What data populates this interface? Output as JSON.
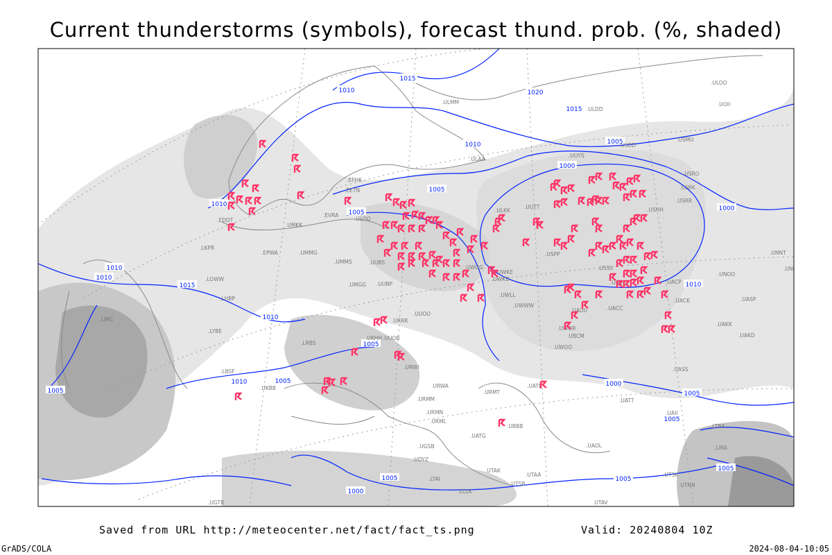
{
  "title": "Current thunderstorms (symbols), forecast thund. prob. (%, shaded)",
  "footer": {
    "source": "Saved from URL http://meteocenter.net/fact/fact_ts.png",
    "valid": "Valid: 20240804 10Z",
    "software": "GrADS/COLA",
    "timestamp": "2024-08-04-10:05"
  },
  "colors": {
    "isobar": "#0022ff",
    "storm_symbol": "#ff3366",
    "shading_light": "#e6e6e6",
    "shading_mid": "#cccccc",
    "shading_dark": "#a8a8a8",
    "coast": "#888888"
  },
  "map": {
    "symbol_icon": "thunderstorm-symbol-icon",
    "isobar_labels": [
      "1015",
      "1010",
      "1020",
      "1015",
      "1010",
      "1005",
      "1000",
      "1005",
      "1010",
      "1005",
      "1000",
      "1010",
      "1010",
      "1015",
      "1010",
      "1005",
      "1010",
      "1005",
      "1005",
      "1000",
      "1005",
      "1005",
      "1005",
      "1005",
      "1000",
      "1010",
      "1005"
    ],
    "stations": [
      "ULOO",
      "ULMM",
      "ULDD",
      "UUYS",
      "USDD",
      "USMU",
      "UOII",
      "ULAA",
      "EFHK",
      "EETN",
      "ULOO",
      "EVRA",
      "UMKK",
      "ULKK",
      "UUTT",
      "USRO",
      "USRK",
      "USRR",
      "USHH",
      "EDDT",
      "EPWA",
      "UMMG",
      "UMMS",
      "UMGG",
      "UUBP",
      "UUBS",
      "UUOO",
      "UWGG",
      "UWKE",
      "UWKD",
      "UWLL",
      "UWWW",
      "USPP",
      "USSS",
      "USCC",
      "UACP",
      "UACK",
      "UNOO",
      "UNNT",
      "UNBB",
      "UASP",
      "LKPR",
      "LOWW",
      "LHBP",
      "LYBE",
      "LRBS",
      "LBSF",
      "UKBB",
      "UKHH",
      "UUOB",
      "URRR",
      "URWI",
      "URWA",
      "URMT",
      "URMM",
      "URMN",
      "URML",
      "UATG",
      "UATE",
      "UBBB",
      "UTAK",
      "UTAA",
      "UTAV",
      "UTSB",
      "UTSK",
      "UTNN",
      "UAOL",
      "UATT",
      "UWOO",
      "UWOR",
      "UBCM",
      "UAUU",
      "UACC",
      "UAKK",
      "UAKD",
      "UASS",
      "UAII",
      "LTBA",
      "LTAI",
      "LCLK",
      "UGTB",
      "UGSB",
      "UDYZ",
      "LIRA",
      "LIMC"
    ]
  }
}
